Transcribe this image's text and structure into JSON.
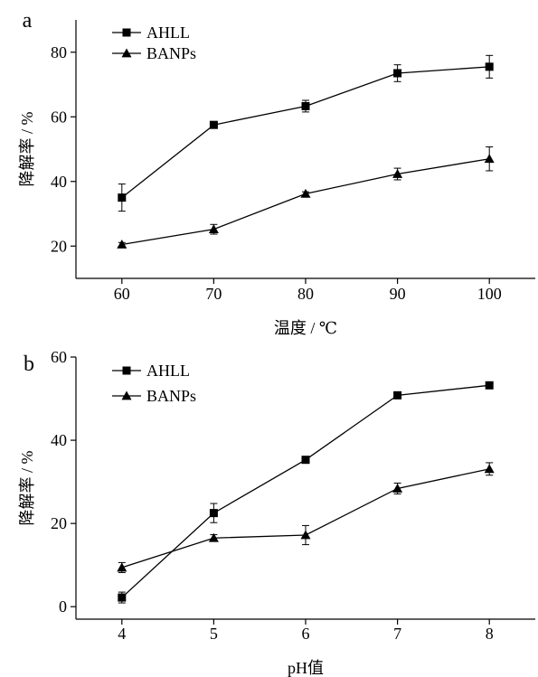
{
  "chart_data": [
    {
      "panel_label": "a",
      "type": "line",
      "x": [
        60,
        70,
        80,
        90,
        100
      ],
      "xlabel": "温度 / ℃",
      "ylabel": "降解率 / %",
      "xlim": [
        55,
        105
      ],
      "ylim": [
        10,
        90
      ],
      "xticks": [
        60,
        70,
        80,
        90,
        100
      ],
      "yticks": [
        20,
        40,
        60,
        80
      ],
      "grid": false,
      "legend_position": "top-left",
      "series": [
        {
          "name": "AHLL",
          "marker": "square",
          "values": [
            35.0,
            57.5,
            63.3,
            73.5,
            75.5
          ],
          "errors": [
            4.2,
            0.6,
            1.8,
            2.6,
            3.5
          ]
        },
        {
          "name": "BANPs",
          "marker": "triangle",
          "values": [
            20.5,
            25.2,
            36.2,
            42.3,
            47.0
          ],
          "errors": [
            0.6,
            1.5,
            0.6,
            1.8,
            3.7
          ]
        }
      ]
    },
    {
      "panel_label": "b",
      "type": "line",
      "x": [
        4,
        5,
        6,
        7,
        8
      ],
      "xlabel": "pH值",
      "ylabel": "降解率 / %",
      "xlim": [
        3.5,
        8.5
      ],
      "ylim": [
        -3,
        60
      ],
      "xticks": [
        4,
        5,
        6,
        7,
        8
      ],
      "yticks": [
        0,
        20,
        40,
        60
      ],
      "grid": false,
      "legend_position": "top-left",
      "series": [
        {
          "name": "AHLL",
          "marker": "square",
          "values": [
            2.2,
            22.5,
            35.3,
            50.8,
            53.2
          ],
          "errors": [
            1.3,
            2.3,
            0.4,
            0.4,
            0.8
          ]
        },
        {
          "name": "BANPs",
          "marker": "triangle",
          "values": [
            9.4,
            16.5,
            17.2,
            28.4,
            33.1
          ],
          "errors": [
            1.2,
            0.8,
            2.3,
            1.3,
            1.5
          ]
        }
      ]
    }
  ]
}
